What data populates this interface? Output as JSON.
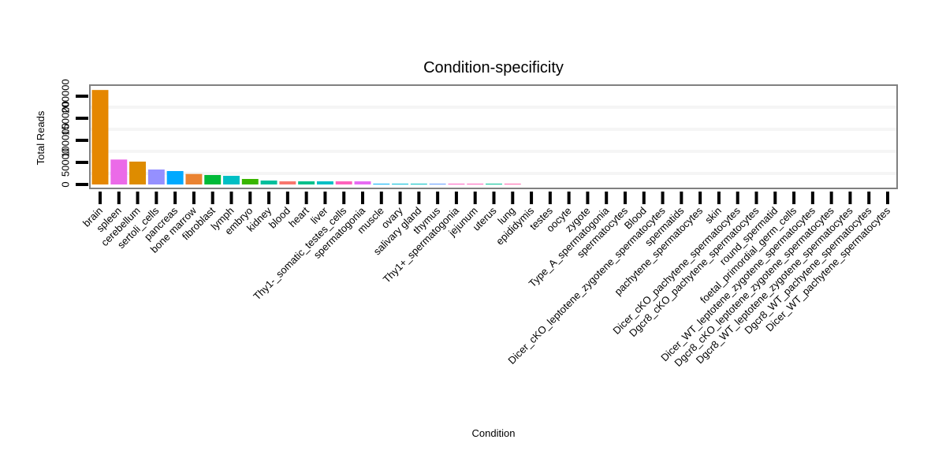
{
  "chart_data": {
    "type": "bar",
    "title": "Condition-specificity",
    "xlabel": "Condition",
    "ylabel": "Total Reads",
    "ylim": [
      0,
      225000
    ],
    "yticks": [
      0,
      50000,
      100000,
      150000,
      200000
    ],
    "ytick_labels": [
      "0",
      "50000",
      "100000",
      "150000",
      "200000"
    ],
    "grid": "faint horizontal minor",
    "legend": "none",
    "categories": [
      "brain",
      "spleen",
      "cerebellum",
      "sertoli_cells",
      "pancreas",
      "bone marrow",
      "fibroblast",
      "lymph",
      "embryo",
      "kidney",
      "blood",
      "heart",
      "liver",
      "Thy1-_somatic_testes_cells",
      "spermatogonia",
      "muscle",
      "ovary",
      "salivary gland",
      "thymus",
      "Thy1+_spermatogonia",
      "jejunum",
      "uterus",
      "lung",
      "epididymis",
      "testes",
      "oocyte",
      "zygote",
      "Type_A_spermatogonia",
      "spermatocytes",
      "Blood",
      "Dicer_cKO_leptotene_zygotene_spermatocytes",
      "spermatids",
      "pachytene_spermatocytes",
      "skin",
      "Dicer_cKO_pachytene_spermatocytes",
      "Dgcr8_cKO_pachytene_spermatocytes",
      "round_spermatid",
      "foetal_primordial_germ_cells",
      "Dicer_WT_leptotene_zygotene_spermatocytes",
      "Dgcr8_cKO_leptotene_zygotene_spermatocytes",
      "Dgcr8_WT_leptotene_zygotene_spermatocytes",
      "Dgcr8_WT_pachytene_spermatocytes",
      "Dicer_WT_pachytene_spermatocytes"
    ],
    "values": [
      214000,
      56500,
      51800,
      33900,
      30400,
      23800,
      21400,
      19600,
      12500,
      8900,
      7100,
      7100,
      7100,
      7100,
      7100,
      1600,
      1500,
      1500,
      1500,
      1500,
      1500,
      1500,
      1500,
      0,
      0,
      0,
      0,
      0,
      0,
      0,
      0,
      0,
      0,
      0,
      0,
      0,
      0,
      0,
      0,
      0,
      0,
      0,
      0
    ],
    "colors": [
      "#E58700",
      "#EB6AE8",
      "#DE8C00",
      "#9590FF",
      "#00A9FF",
      "#EA8331",
      "#00BA38",
      "#00BFC4",
      "#39B600",
      "#00BF9C",
      "#F8766D",
      "#00C08B",
      "#00BFC4",
      "#FF62BC",
      "#E76BF3",
      "#00B0F6",
      "#00BCD8",
      "#00BFC4",
      "#619CFF",
      "#FF61C3",
      "#FF62BC",
      "#00C094",
      "#FF65AC",
      "#00BFC4",
      "#00BFC4",
      "#00BFC4",
      "#00BFC4",
      "#00BFC4",
      "#00BFC4",
      "#00BFC4",
      "#00BFC4",
      "#00BFC4",
      "#00BFC4",
      "#00BFC4",
      "#00BFC4",
      "#00BFC4",
      "#00BFC4",
      "#00BFC4",
      "#00BFC4",
      "#00BFC4",
      "#00BFC4",
      "#00BFC4",
      "#00BFC4"
    ]
  }
}
